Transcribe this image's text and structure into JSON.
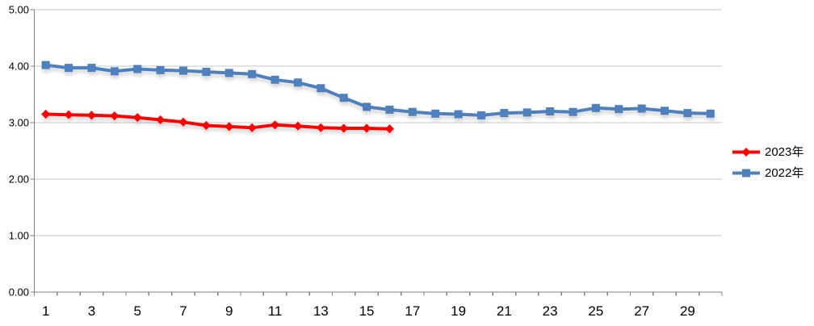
{
  "chart_data": {
    "type": "line",
    "title": "",
    "categories": [
      1,
      2,
      3,
      4,
      5,
      6,
      7,
      8,
      9,
      10,
      11,
      12,
      13,
      14,
      15,
      16,
      17,
      18,
      19,
      20,
      21,
      22,
      23,
      24,
      25,
      26,
      27,
      28,
      29,
      30
    ],
    "x_axis": {
      "tick_labels_shown": [
        "1",
        "3",
        "5",
        "7",
        "9",
        "11",
        "13",
        "15",
        "17",
        "19",
        "21",
        "23",
        "25",
        "27",
        "29"
      ],
      "label_every": 2
    },
    "y_axis": {
      "min": 0,
      "max": 5,
      "step": 1,
      "tick_labels": [
        "0.00",
        "1.00",
        "2.00",
        "3.00",
        "4.00",
        "5.00"
      ]
    },
    "grid": "horizontal",
    "legend_position": "right",
    "series": [
      {
        "name": "2023年",
        "color": "#FE0000",
        "marker": "diamond",
        "values": [
          3.15,
          3.14,
          3.13,
          3.12,
          3.09,
          3.05,
          3.01,
          2.95,
          2.93,
          2.91,
          2.96,
          2.94,
          2.91,
          2.9,
          2.9,
          2.89
        ]
      },
      {
        "name": "2022年",
        "color": "#4E80BC",
        "marker": "square",
        "values": [
          4.02,
          3.97,
          3.97,
          3.91,
          3.95,
          3.93,
          3.92,
          3.9,
          3.88,
          3.86,
          3.76,
          3.71,
          3.61,
          3.44,
          3.28,
          3.23,
          3.19,
          3.16,
          3.15,
          3.13,
          3.17,
          3.18,
          3.2,
          3.19,
          3.26,
          3.24,
          3.25,
          3.21,
          3.17,
          3.16
        ]
      }
    ],
    "styles": {
      "gridline_color": "#C9C9C9",
      "axis_color": "#808080",
      "text_color": "#000000"
    }
  }
}
